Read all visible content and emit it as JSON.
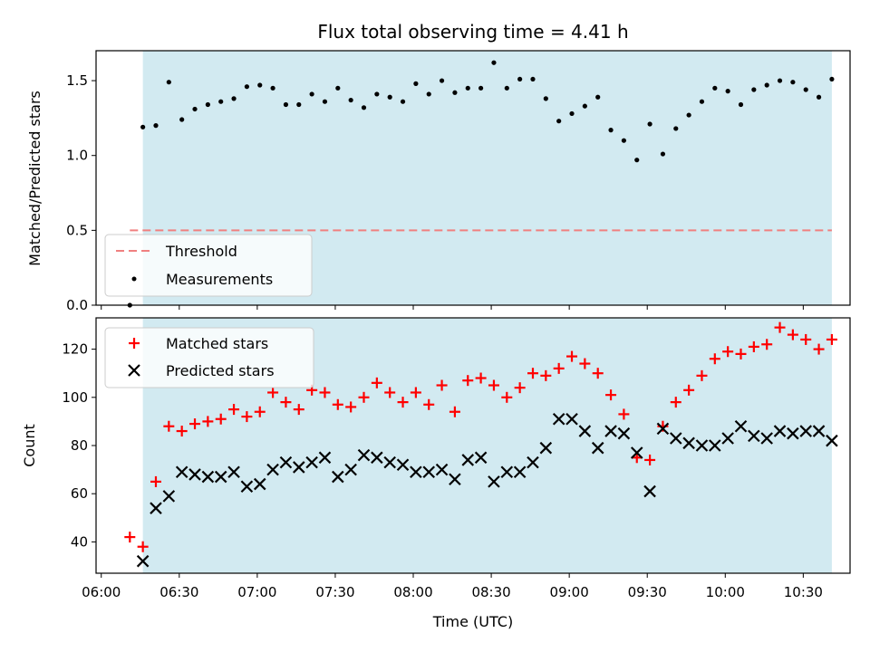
{
  "chart_data": [
    {
      "type": "scatter",
      "title": "Flux total observing time = 4.41 h",
      "ylabel": "Matched/Predicted stars",
      "xlabel": "",
      "ylim": [
        0,
        1.7
      ],
      "yticks": [
        "0.0",
        "0.5",
        "1.0",
        "1.5"
      ],
      "shaded_span": {
        "start": "06:16",
        "end": "10:41",
        "color": "#add8e6"
      },
      "threshold": {
        "name": "Threshold",
        "value": 0.5,
        "x_start": "06:11",
        "x_end": "10:41",
        "color": "#f08080"
      },
      "legend_position": "lower-left",
      "legend": [
        "Threshold",
        "Measurements"
      ],
      "series": [
        {
          "name": "Measurements",
          "color": "#000000",
          "x": [
            "06:11",
            "06:16",
            "06:21",
            "06:26",
            "06:31",
            "06:36",
            "06:41",
            "06:46",
            "06:51",
            "06:56",
            "07:01",
            "07:06",
            "07:11",
            "07:16",
            "07:21",
            "07:26",
            "07:31",
            "07:36",
            "07:41",
            "07:46",
            "07:51",
            "07:56",
            "08:01",
            "08:06",
            "08:11",
            "08:16",
            "08:21",
            "08:26",
            "08:31",
            "08:36",
            "08:41",
            "08:46",
            "08:51",
            "08:56",
            "09:01",
            "09:06",
            "09:11",
            "09:16",
            "09:21",
            "09:26",
            "09:31",
            "09:36",
            "09:41",
            "09:46",
            "09:51",
            "09:56",
            "10:01",
            "10:06",
            "10:11",
            "10:16",
            "10:21",
            "10:26",
            "10:31",
            "10:36",
            "10:41"
          ],
          "y": [
            0.0,
            1.19,
            1.2,
            1.49,
            1.24,
            1.31,
            1.34,
            1.36,
            1.38,
            1.46,
            1.47,
            1.45,
            1.34,
            1.34,
            1.41,
            1.36,
            1.45,
            1.37,
            1.32,
            1.41,
            1.39,
            1.36,
            1.48,
            1.41,
            1.5,
            1.42,
            1.45,
            1.45,
            1.62,
            1.45,
            1.51,
            1.51,
            1.38,
            1.23,
            1.28,
            1.33,
            1.39,
            1.17,
            1.1,
            0.97,
            1.21,
            1.01,
            1.18,
            1.27,
            1.36,
            1.45,
            1.43,
            1.34,
            1.44,
            1.47,
            1.5,
            1.49,
            1.44,
            1.39,
            1.51
          ]
        }
      ]
    },
    {
      "type": "scatter",
      "xlabel": "Time (UTC)",
      "ylabel": "Count",
      "ylim": [
        27,
        133
      ],
      "yticks": [
        "40",
        "60",
        "80",
        "100",
        "120"
      ],
      "xticks": [
        "06:00",
        "06:30",
        "07:00",
        "07:30",
        "08:00",
        "08:30",
        "09:00",
        "09:30",
        "10:00",
        "10:30"
      ],
      "xlim": [
        "05:58",
        "10:48"
      ],
      "legend_position": "upper-left",
      "legend": [
        "Matched stars",
        "Predicted stars"
      ],
      "series": [
        {
          "name": "Matched stars",
          "marker": "plus",
          "color": "#ff0000",
          "x": [
            "06:11",
            "06:16",
            "06:21",
            "06:26",
            "06:31",
            "06:36",
            "06:41",
            "06:46",
            "06:51",
            "06:56",
            "07:01",
            "07:06",
            "07:11",
            "07:16",
            "07:21",
            "07:26",
            "07:31",
            "07:36",
            "07:41",
            "07:46",
            "07:51",
            "07:56",
            "08:01",
            "08:06",
            "08:11",
            "08:16",
            "08:21",
            "08:26",
            "08:31",
            "08:36",
            "08:41",
            "08:46",
            "08:51",
            "08:56",
            "09:01",
            "09:06",
            "09:11",
            "09:16",
            "09:21",
            "09:26",
            "09:31",
            "09:36",
            "09:41",
            "09:46",
            "09:51",
            "09:56",
            "10:01",
            "10:06",
            "10:11",
            "10:16",
            "10:21",
            "10:26",
            "10:31",
            "10:36",
            "10:41"
          ],
          "y": [
            42,
            38,
            65,
            88,
            86,
            89,
            90,
            91,
            95,
            92,
            94,
            102,
            98,
            95,
            103,
            102,
            97,
            96,
            100,
            106,
            102,
            98,
            102,
            97,
            105,
            94,
            107,
            108,
            105,
            100,
            104,
            110,
            109,
            112,
            117,
            114,
            110,
            101,
            93,
            75,
            74,
            88,
            98,
            103,
            109,
            116,
            119,
            118,
            121,
            122,
            129,
            126,
            124,
            120,
            124
          ]
        },
        {
          "name": "Predicted stars",
          "marker": "x",
          "color": "#000000",
          "x": [
            "06:16",
            "06:21",
            "06:26",
            "06:31",
            "06:36",
            "06:41",
            "06:46",
            "06:51",
            "06:56",
            "07:01",
            "07:06",
            "07:11",
            "07:16",
            "07:21",
            "07:26",
            "07:31",
            "07:36",
            "07:41",
            "07:46",
            "07:51",
            "07:56",
            "08:01",
            "08:06",
            "08:11",
            "08:16",
            "08:21",
            "08:26",
            "08:31",
            "08:36",
            "08:41",
            "08:46",
            "08:51",
            "08:56",
            "09:01",
            "09:06",
            "09:11",
            "09:16",
            "09:21",
            "09:26",
            "09:31",
            "09:36",
            "09:41",
            "09:46",
            "09:51",
            "09:56",
            "10:01",
            "10:06",
            "10:11",
            "10:16",
            "10:21",
            "10:26",
            "10:31",
            "10:36",
            "10:41"
          ],
          "y": [
            32,
            54,
            59,
            69,
            68,
            67,
            67,
            69,
            63,
            64,
            70,
            73,
            71,
            73,
            75,
            67,
            70,
            76,
            75,
            73,
            72,
            69,
            69,
            70,
            66,
            74,
            75,
            65,
            69,
            69,
            73,
            79,
            91,
            91,
            86,
            79,
            86,
            85,
            77,
            61,
            87,
            83,
            81,
            80,
            80,
            83,
            88,
            84,
            83,
            86,
            85,
            86,
            86,
            82
          ]
        }
      ]
    }
  ]
}
